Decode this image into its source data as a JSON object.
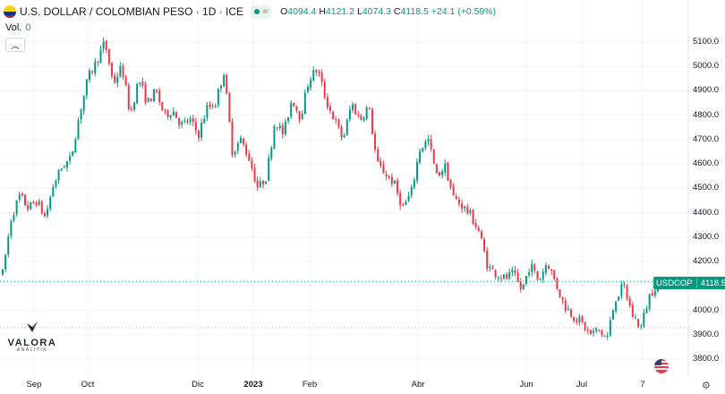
{
  "header": {
    "title": "U.S. DOLLAR / COLOMBIAN PESO · 1D · ICE",
    "open_label": "O",
    "open": "4094.4",
    "high_label": "H",
    "high": "4121.2",
    "low_label": "L",
    "low": "4074.3",
    "close_label": "C",
    "close": "4118.5",
    "change": "+24.1 (+0.59%)",
    "market_status_icon": "market-open-dot-icon",
    "wave_icon": "wave-icon"
  },
  "volume": {
    "label": "Vol.",
    "value": "0"
  },
  "collapse_icon": "chevron-up-icon",
  "price_label": {
    "symbol": "USDCOP",
    "value": "4118.5"
  },
  "logo": {
    "brand": "VALORA",
    "sub": "ANALITIK"
  },
  "colors": {
    "up": "#089981",
    "down": "#f23645",
    "grid": "#f0f3fa",
    "text": "#131722"
  },
  "chart_data": {
    "type": "candlestick",
    "title": "U.S. DOLLAR / COLOMBIAN PESO · 1D · ICE",
    "symbol": "USDCOP",
    "last_price": 4118.5,
    "ylim": [
      3750,
      5180
    ],
    "y_ticks": [
      "5100.0",
      "5000.0",
      "4900.0",
      "4800.0",
      "4700.0",
      "4600.0",
      "4500.0",
      "4400.0",
      "4300.0",
      "4200.0",
      "4100.0",
      "4000.0",
      "3900.0",
      "3800.0"
    ],
    "y_tick_values": [
      5100,
      5000,
      4900,
      4800,
      4700,
      4600,
      4500,
      4400,
      4300,
      4200,
      4100,
      4000,
      3900,
      3800
    ],
    "x_ticks": [
      "Sep",
      "Oct",
      "Dic",
      "2023",
      "Feb",
      "Abr",
      "Jun",
      "Jul",
      "7"
    ],
    "x_tick_bold": [
      false,
      false,
      false,
      true,
      false,
      false,
      false,
      false,
      false
    ],
    "dashed_levels": [
      4118.5,
      3930
    ],
    "series_anchors": [
      4150,
      4380,
      4470,
      4420,
      4450,
      4380,
      4520,
      4590,
      4620,
      4800,
      4950,
      5020,
      5100,
      4930,
      5000,
      4800,
      4950,
      4850,
      4900,
      4800,
      4820,
      4760,
      4780,
      4720,
      4830,
      4850,
      4980,
      4650,
      4700,
      4620,
      4500,
      4550,
      4780,
      4720,
      4870,
      4790,
      4950,
      4990,
      4860,
      4780,
      4700,
      4850,
      4780,
      4840,
      4600,
      4560,
      4520,
      4420,
      4480,
      4660,
      4700,
      4550,
      4590,
      4460,
      4430,
      4390,
      4320,
      4180,
      4150,
      4130,
      4150,
      4080,
      4190,
      4120,
      4200,
      4110,
      4020,
      3980,
      3950,
      3900,
      3920,
      3880,
      4050,
      4100,
      3980,
      3930,
      4060,
      4118.5
    ]
  }
}
